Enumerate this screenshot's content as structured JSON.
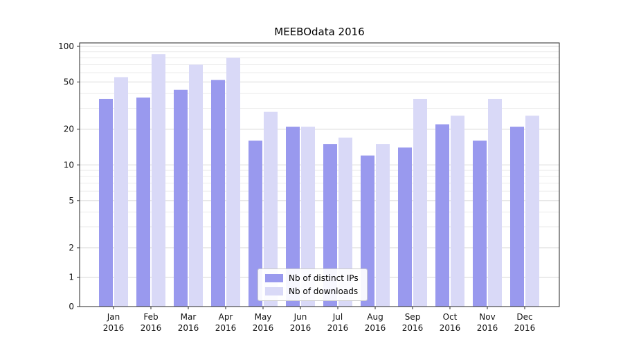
{
  "chart_data": {
    "type": "bar",
    "title": "MEEBOdata 2016",
    "categories": [
      "Jan",
      "Feb",
      "Mar",
      "Apr",
      "May",
      "Jun",
      "Jul",
      "Aug",
      "Sep",
      "Oct",
      "Nov",
      "Dec"
    ],
    "year_label": "2016",
    "series": [
      {
        "name": "Nb of distinct IPs",
        "color": "#9999ee",
        "values": [
          36,
          37,
          43,
          52,
          16,
          21,
          15,
          12,
          14,
          22,
          16,
          21
        ]
      },
      {
        "name": "Nb of downloads",
        "color": "#d9d9f7",
        "values": [
          55,
          86,
          70,
          80,
          28,
          21,
          17,
          15,
          36,
          26,
          36,
          26
        ]
      }
    ],
    "yscale": "symlog",
    "yticks": [
      0,
      1,
      2,
      5,
      10,
      20,
      50,
      100
    ],
    "minor_yticks": [
      3,
      4,
      6,
      7,
      8,
      9,
      30,
      40,
      60,
      70,
      80,
      90
    ],
    "ylim": [
      0,
      108
    ],
    "grid": true,
    "legend_position": "lower center"
  },
  "colors": {
    "major_gridline": "#d7d7d7",
    "minor_gridline": "#ebebeb",
    "axis": "#262626",
    "tick_label": "#111111"
  }
}
